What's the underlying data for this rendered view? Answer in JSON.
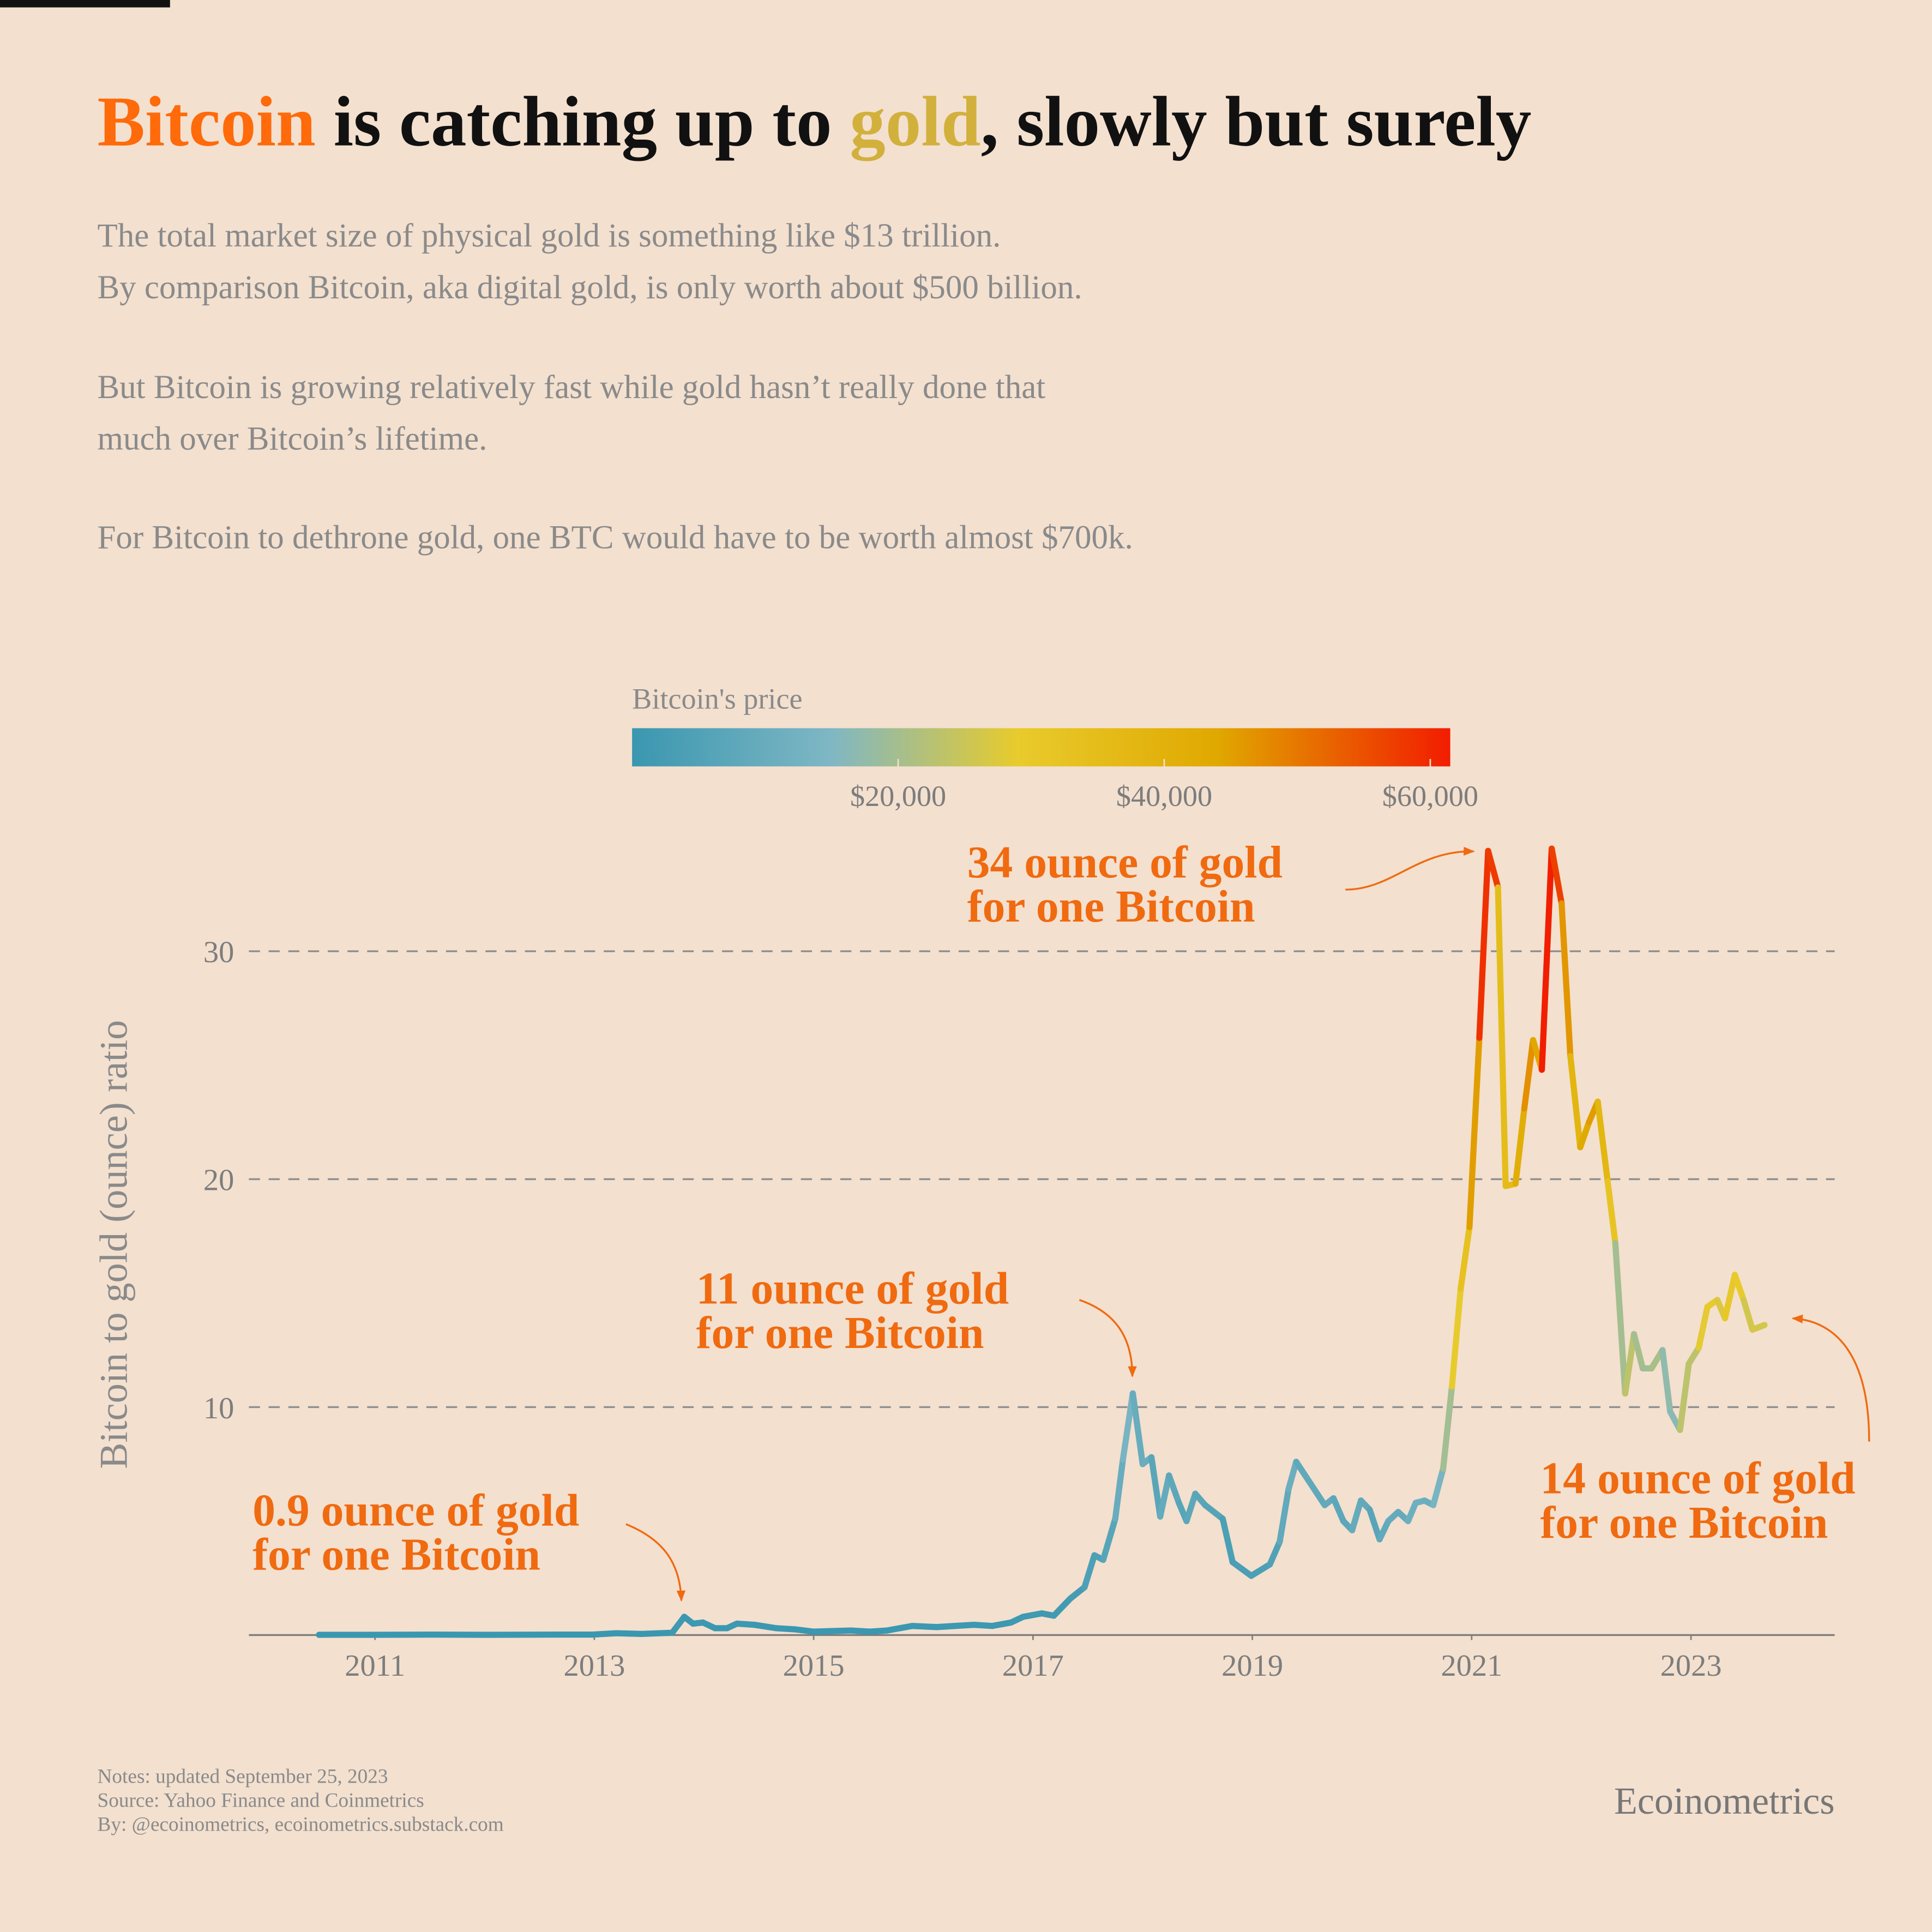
{
  "chart_data": {
    "type": "line",
    "title": [
      "Bitcoin",
      " is catching up to ",
      "gold",
      ", slowly but surely"
    ],
    "title_colors": [
      "#ff6a0a",
      "#111111",
      "#d2b03c",
      "#111111"
    ],
    "subtitle": [
      [
        "The total market size of physical gold is something like $13 trillion.",
        "By comparison Bitcoin, aka digital gold, is only worth about $500 billion."
      ],
      [
        "But Bitcoin is growing relatively fast while gold hasn’t really done that",
        "much over Bitcoin’s lifetime."
      ],
      [
        "For Bitcoin to dethrone gold, one BTC would have to be worth almost $700k."
      ]
    ],
    "ylabel": "Bitcoin to gold (ounce) ratio",
    "xlim": [
      2009.85,
      2024.31
    ],
    "xticks": [
      2011,
      2013,
      2015,
      2017,
      2019,
      2021,
      2023
    ],
    "ylim": [
      0,
      35
    ],
    "yticks": [
      10,
      20,
      30
    ],
    "grid": true,
    "colorbar": {
      "title": "Bitcoin's price",
      "clim": [
        0,
        61500
      ],
      "ticks": [
        {
          "value": 20000,
          "label": "$20,000"
        },
        {
          "value": 40000,
          "label": "$40,000"
        },
        {
          "value": 60000,
          "label": "$60,000"
        }
      ],
      "colorscale": [
        [
          0,
          "#3a97b0"
        ],
        [
          15000,
          "#7fb7c4"
        ],
        [
          29000,
          "#e8cb2c"
        ],
        [
          44000,
          "#e0a800"
        ],
        [
          61500,
          "#f21c00"
        ]
      ]
    },
    "series": [
      {
        "x": [
          2010.49,
          2010.96,
          2011.52,
          2012.08,
          2012.64,
          2012.98,
          2013.2,
          2013.43,
          2013.71,
          2013.82,
          2013.9,
          2013.99,
          2014.1,
          2014.21,
          2014.3,
          2014.46,
          2014.66,
          2014.83,
          2015.0,
          2015.34,
          2015.51,
          2015.67,
          2015.9,
          2016.12,
          2016.46,
          2016.63,
          2016.8,
          2016.91,
          2017.08,
          2017.19,
          2017.34,
          2017.47,
          2017.56,
          2017.64,
          2017.75,
          2017.82,
          2017.91,
          2018.0,
          2018.08,
          2018.16,
          2018.24,
          2018.33,
          2018.4,
          2018.48,
          2018.57,
          2018.73,
          2018.82,
          2018.99,
          2019.16,
          2019.25,
          2019.33,
          2019.4,
          2019.66,
          2019.74,
          2019.83,
          2019.91,
          2019.99,
          2020.07,
          2020.16,
          2020.24,
          2020.33,
          2020.42,
          2020.49,
          2020.57,
          2020.65,
          2020.74,
          2020.82,
          2020.9,
          2020.98,
          2021.07,
          2021.15,
          2021.24,
          2021.31,
          2021.4,
          2021.48,
          2021.56,
          2021.64,
          2021.73,
          2021.82,
          2021.9,
          2021.99,
          2022.07,
          2022.15,
          2022.24,
          2022.31,
          2022.4,
          2022.48,
          2022.56,
          2022.64,
          2022.74,
          2022.81,
          2022.9,
          2022.98,
          2023.07,
          2023.15,
          2023.24,
          2023.31,
          2023.4,
          2023.48,
          2023.56,
          2023.67
        ],
        "values": [
          0.01,
          0.01,
          0.02,
          0.01,
          0.02,
          0.02,
          0.08,
          0.05,
          0.1,
          0.8,
          0.5,
          0.55,
          0.3,
          0.3,
          0.5,
          0.45,
          0.3,
          0.25,
          0.15,
          0.2,
          0.15,
          0.2,
          0.4,
          0.35,
          0.45,
          0.4,
          0.55,
          0.8,
          0.95,
          0.85,
          1.6,
          2.1,
          3.5,
          3.3,
          5.1,
          7.7,
          10.6,
          7.5,
          7.8,
          5.2,
          7.0,
          5.8,
          5.0,
          6.2,
          5.7,
          5.1,
          3.2,
          2.6,
          3.1,
          4.1,
          6.4,
          7.6,
          5.7,
          6.0,
          5.0,
          4.6,
          5.9,
          5.5,
          4.2,
          5.0,
          5.4,
          5.0,
          5.8,
          5.9,
          5.7,
          7.3,
          10.9,
          15.2,
          17.9,
          26.2,
          34.4,
          32.8,
          19.7,
          19.8,
          23.1,
          26.1,
          24.8,
          34.5,
          32.1,
          25.4,
          21.4,
          22.5,
          23.4,
          19.9,
          17.2,
          10.6,
          13.2,
          11.7,
          11.7,
          12.5,
          9.8,
          9.0,
          11.9,
          12.6,
          14.4,
          14.7,
          13.9,
          15.8,
          14.7,
          13.4,
          13.6
        ],
        "price": [
          0,
          0,
          20,
          10,
          30,
          30,
          100,
          80,
          130,
          1000,
          650,
          700,
          400,
          400,
          600,
          580,
          380,
          320,
          220,
          240,
          280,
          230,
          430,
          420,
          600,
          570,
          700,
          960,
          1190,
          1080,
          2000,
          2600,
          4400,
          4300,
          6500,
          9900,
          13800,
          10000,
          10400,
          6900,
          9200,
          7500,
          6400,
          7700,
          7000,
          6300,
          4000,
          3400,
          4000,
          5300,
          8500,
          10800,
          8300,
          9100,
          7600,
          7200,
          9300,
          8600,
          6600,
          8600,
          9400,
          9100,
          11300,
          11500,
          10800,
          13700,
          19600,
          28900,
          33100,
          45200,
          58900,
          57800,
          35000,
          35800,
          41500,
          47100,
          43800,
          61300,
          57000,
          46300,
          38500,
          43200,
          45500,
          37700,
          31800,
          19800,
          23300,
          20000,
          19400,
          20500,
          17200,
          16500,
          23100,
          23100,
          28400,
          29300,
          27200,
          30500,
          29200,
          26000,
          26300
        ]
      }
    ],
    "annotations": [
      [
        "34 ounce of gold",
        "for one Bitcoin"
      ],
      [
        "11 ounce of gold",
        "for one Bitcoin"
      ],
      [
        "0.9 ounce of gold",
        "for one Bitcoin"
      ],
      [
        "14 ounce of gold",
        "for one Bitcoin"
      ]
    ],
    "annotation_color": "#f06a10",
    "notes": [
      "Notes: updated September 25, 2023",
      "Source: Yahoo Finance and Coinmetrics",
      "By: @ecoinometrics, ecoinometrics.substack.com"
    ],
    "brand": "Ecoinometrics"
  }
}
